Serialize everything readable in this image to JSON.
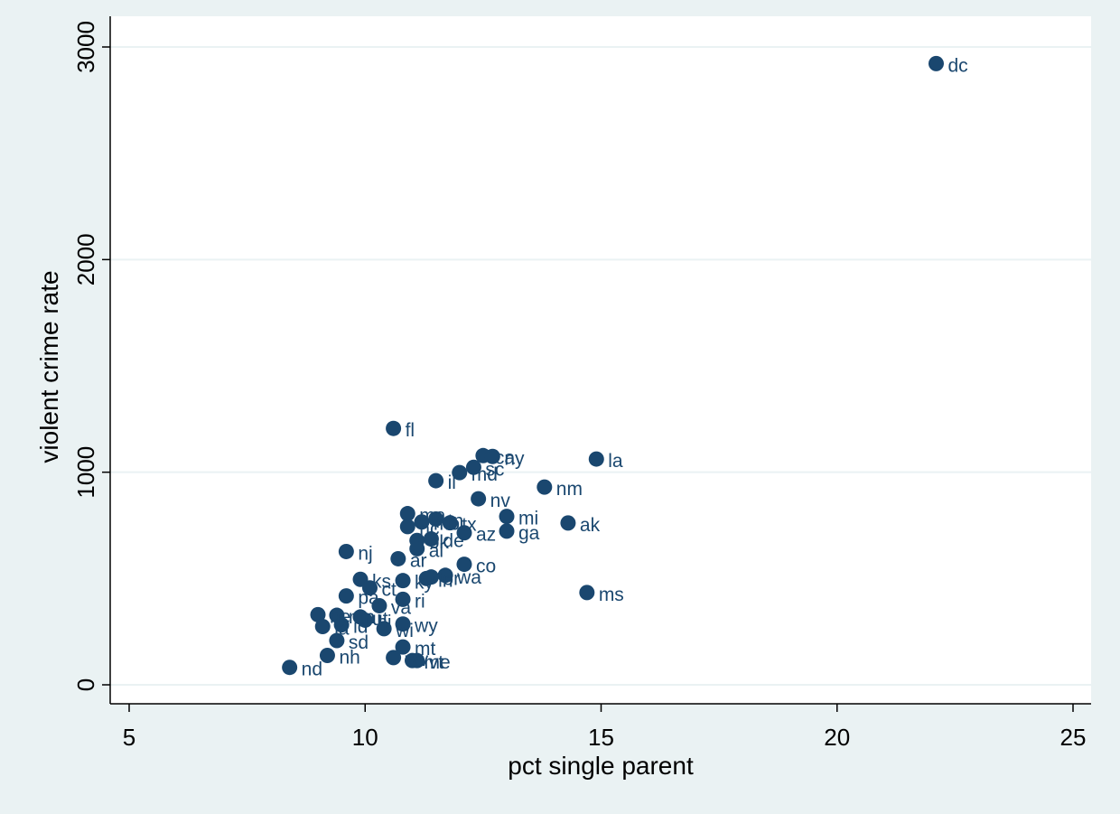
{
  "chart_data": {
    "type": "scatter",
    "title": "",
    "xlabel": "pct single parent",
    "ylabel": "violent crime rate",
    "xlim": [
      5,
      25
    ],
    "ylim": [
      0,
      3000
    ],
    "xticks": [
      5,
      10,
      15,
      20,
      25
    ],
    "yticks": [
      0,
      1000,
      2000,
      3000
    ],
    "grid": "horizontal",
    "legend": "none",
    "colors": {
      "marker": "#1a476f",
      "label": "#1a476f",
      "background": "#eaf2f3",
      "plot": "#ffffff",
      "grid": "#eaf2f3"
    },
    "points": [
      {
        "label": "dc",
        "x": 22.1,
        "y": 2922
      },
      {
        "label": "fl",
        "x": 10.6,
        "y": 1206
      },
      {
        "label": "ca",
        "x": 12.5,
        "y": 1078
      },
      {
        "label": "ny",
        "x": 12.7,
        "y": 1074
      },
      {
        "label": "la",
        "x": 14.9,
        "y": 1062
      },
      {
        "label": "sc",
        "x": 12.3,
        "y": 1023
      },
      {
        "label": "md",
        "x": 12.0,
        "y": 998
      },
      {
        "label": "il",
        "x": 11.5,
        "y": 960
      },
      {
        "label": "nm",
        "x": 13.8,
        "y": 930
      },
      {
        "label": "nv",
        "x": 12.4,
        "y": 875
      },
      {
        "label": "ma",
        "x": 10.9,
        "y": 805
      },
      {
        "label": "mi",
        "x": 13.0,
        "y": 792
      },
      {
        "label": "tn",
        "x": 11.5,
        "y": 780
      },
      {
        "label": "mo",
        "x": 11.2,
        "y": 766
      },
      {
        "label": "tx",
        "x": 11.8,
        "y": 762
      },
      {
        "label": "ak",
        "x": 14.3,
        "y": 761
      },
      {
        "label": "nc",
        "x": 10.9,
        "y": 744
      },
      {
        "label": "ga",
        "x": 13.0,
        "y": 723
      },
      {
        "label": "az",
        "x": 12.1,
        "y": 715
      },
      {
        "label": "de",
        "x": 11.4,
        "y": 686
      },
      {
        "label": "ok",
        "x": 11.1,
        "y": 679
      },
      {
        "label": "al",
        "x": 11.1,
        "y": 640
      },
      {
        "label": "nj",
        "x": 9.6,
        "y": 627
      },
      {
        "label": "ar",
        "x": 10.7,
        "y": 593
      },
      {
        "label": "co",
        "x": 12.1,
        "y": 567
      },
      {
        "label": "wa",
        "x": 11.7,
        "y": 515
      },
      {
        "label": "or",
        "x": 11.4,
        "y": 507
      },
      {
        "label": "in",
        "x": 11.3,
        "y": 500
      },
      {
        "label": "ks",
        "x": 9.9,
        "y": 496
      },
      {
        "label": "ky",
        "x": 10.8,
        "y": 490
      },
      {
        "label": "ms",
        "x": 14.7,
        "y": 434
      },
      {
        "label": "ct",
        "x": 10.1,
        "y": 456
      },
      {
        "label": "pa",
        "x": 9.6,
        "y": 418
      },
      {
        "label": "ri",
        "x": 10.8,
        "y": 402
      },
      {
        "label": "va",
        "x": 10.3,
        "y": 372
      },
      {
        "label": "ne",
        "x": 9.0,
        "y": 330
      },
      {
        "label": "mn",
        "x": 9.4,
        "y": 327
      },
      {
        "label": "hi",
        "x": 10.0,
        "y": 304
      },
      {
        "label": "ia",
        "x": 9.1,
        "y": 274
      },
      {
        "label": "id",
        "x": 9.5,
        "y": 282
      },
      {
        "label": "wy",
        "x": 10.8,
        "y": 286
      },
      {
        "label": "wi",
        "x": 10.4,
        "y": 264
      },
      {
        "label": "ut",
        "x": 9.9,
        "y": 319
      },
      {
        "label": "sd",
        "x": 9.4,
        "y": 208
      },
      {
        "label": "mt",
        "x": 10.8,
        "y": 178
      },
      {
        "label": "nh",
        "x": 9.2,
        "y": 138
      },
      {
        "label": "wv",
        "x": 10.6,
        "y": 128
      },
      {
        "label": "me",
        "x": 11.0,
        "y": 114
      },
      {
        "label": "vt",
        "x": 11.1,
        "y": 114
      },
      {
        "label": "nd",
        "x": 8.4,
        "y": 82
      }
    ]
  }
}
